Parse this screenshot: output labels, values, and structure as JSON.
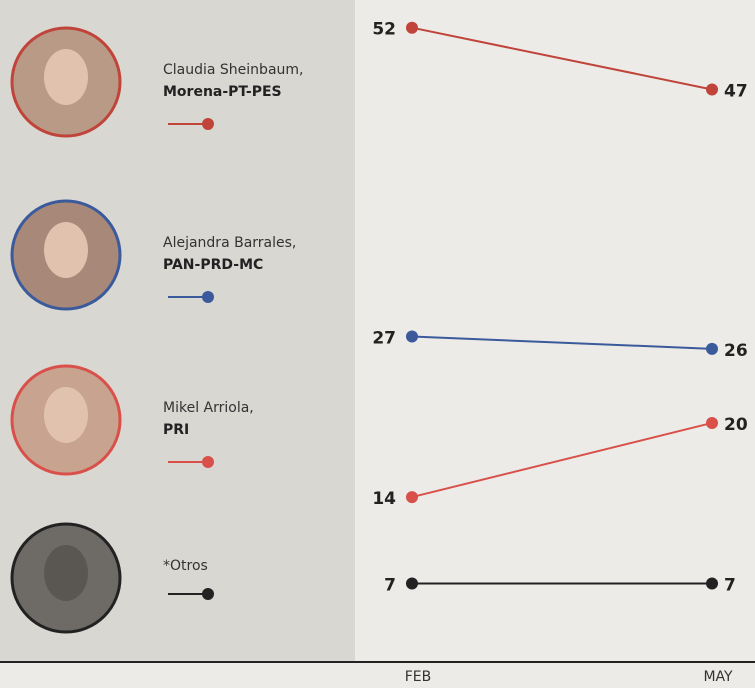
{
  "chart_data": {
    "type": "line",
    "categories": [
      "FEB",
      "MAY"
    ],
    "ylim": [
      0,
      54
    ],
    "series": [
      {
        "name": "Claudia Sheinbaum,",
        "party": "Morena-PT-PES",
        "color": "#c0443a",
        "values": [
          52,
          47
        ]
      },
      {
        "name": "Alejandra Barrales,",
        "party": "PAN-PRD-MC",
        "color": "#3a5a9c",
        "values": [
          27,
          26
        ]
      },
      {
        "name": "Mikel Arriola,",
        "party": "PRI",
        "color": "#d9504a",
        "values": [
          14,
          20
        ]
      },
      {
        "name": "*Otros",
        "color": "#222222",
        "values": [
          7,
          7
        ]
      }
    ]
  }
}
